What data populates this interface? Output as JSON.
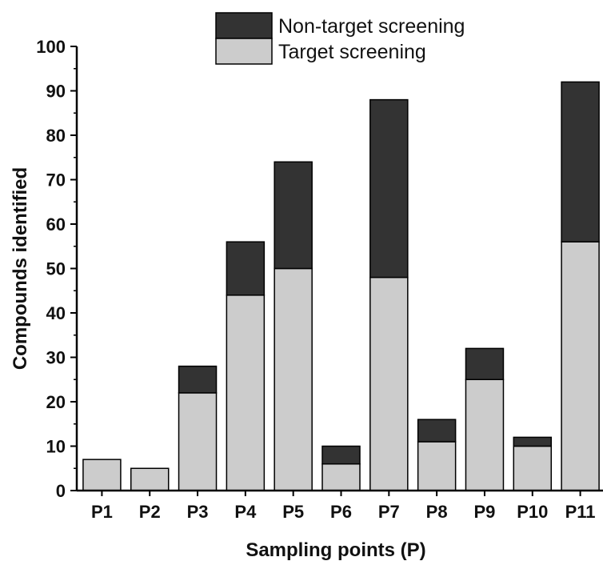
{
  "chart_data": {
    "type": "bar",
    "stacked": true,
    "categories": [
      "P1",
      "P2",
      "P3",
      "P4",
      "P5",
      "P6",
      "P7",
      "P8",
      "P9",
      "P10",
      "P11"
    ],
    "series": [
      {
        "name": "Target screening",
        "color": "#cccccc",
        "values": [
          7,
          5,
          22,
          44,
          50,
          6,
          48,
          11,
          25,
          10,
          56
        ]
      },
      {
        "name": "Non-target screening",
        "color": "#333333",
        "values": [
          0,
          0,
          6,
          12,
          24,
          4,
          40,
          5,
          7,
          2,
          36
        ]
      }
    ],
    "xlabel": "Sampling points (P)",
    "ylabel": "Compounds identified",
    "ylim": [
      0,
      100
    ],
    "yticks": [
      0,
      10,
      20,
      30,
      40,
      50,
      60,
      70,
      80,
      90,
      100
    ],
    "legend_position": "top-center",
    "grid": false
  }
}
